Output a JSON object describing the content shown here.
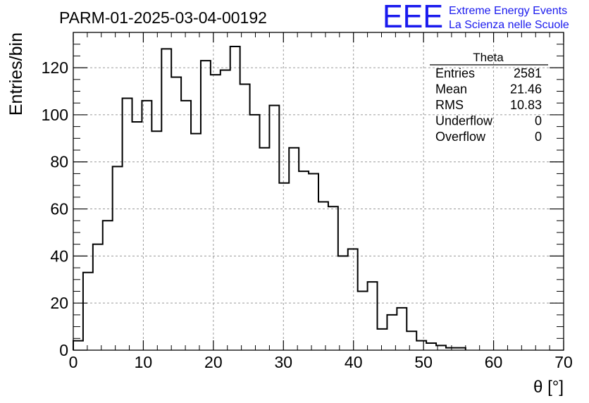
{
  "header": {
    "title": "PARM-01-2025-03-04-00192",
    "logo_text": "EEE",
    "project_line1": "Extreme Energy Events",
    "project_line2": "La Scienza nelle Scuole",
    "brand_color": "#1a1aee"
  },
  "stats_box": {
    "title": "Theta",
    "rows": [
      {
        "label": "Entries",
        "value": "2581"
      },
      {
        "label": "Mean",
        "value": "21.46"
      },
      {
        "label": "RMS",
        "value": "10.83"
      },
      {
        "label": "Underflow",
        "value": "0"
      },
      {
        "label": "Overflow",
        "value": "0"
      }
    ]
  },
  "chart_data": {
    "type": "histogram",
    "xlabel": "θ [°]",
    "ylabel": "Entries/bin",
    "xlim": [
      0,
      70
    ],
    "ylim": [
      0,
      135
    ],
    "x_ticks": [
      "0",
      "10",
      "20",
      "30",
      "40",
      "50",
      "60",
      "70"
    ],
    "y_ticks": [
      "0",
      "20",
      "40",
      "60",
      "80",
      "100",
      "120"
    ],
    "grid": true,
    "bin_edges_start": 0,
    "bin_width": 1.4,
    "values": [
      4,
      33,
      45,
      55,
      78,
      107,
      97,
      106,
      93,
      128,
      116,
      106,
      92,
      123,
      117,
      119,
      129,
      113,
      100,
      86,
      104,
      71,
      86,
      76,
      75,
      63,
      61,
      40,
      43,
      25,
      29,
      9,
      15,
      18,
      8,
      4,
      3,
      2,
      1,
      1
    ]
  }
}
